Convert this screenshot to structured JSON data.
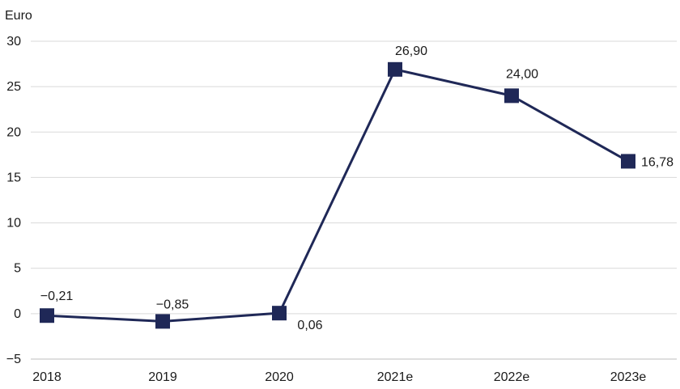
{
  "chart_data": {
    "type": "line",
    "unit_label": "Euro",
    "categories": [
      "2018",
      "2019",
      "2020",
      "2021e",
      "2022e",
      "2023e"
    ],
    "series": [
      {
        "values": [
          -0.21,
          -0.85,
          0.06,
          26.9,
          24.0,
          16.78
        ],
        "labels": [
          "−0,21",
          "−0,85",
          "0,06",
          "26,90",
          "24,00",
          "16,78"
        ]
      }
    ],
    "y_ticks": [
      30,
      25,
      20,
      15,
      10,
      5,
      0,
      -5
    ],
    "y_tick_labels": [
      "30",
      "25",
      "20",
      "15",
      "10",
      "5",
      "0",
      "−5"
    ],
    "ylim": [
      -5,
      30
    ],
    "grid": true,
    "marker": "square",
    "colors": {
      "line": "#1f2857",
      "grid": "#d9d9d9"
    }
  }
}
